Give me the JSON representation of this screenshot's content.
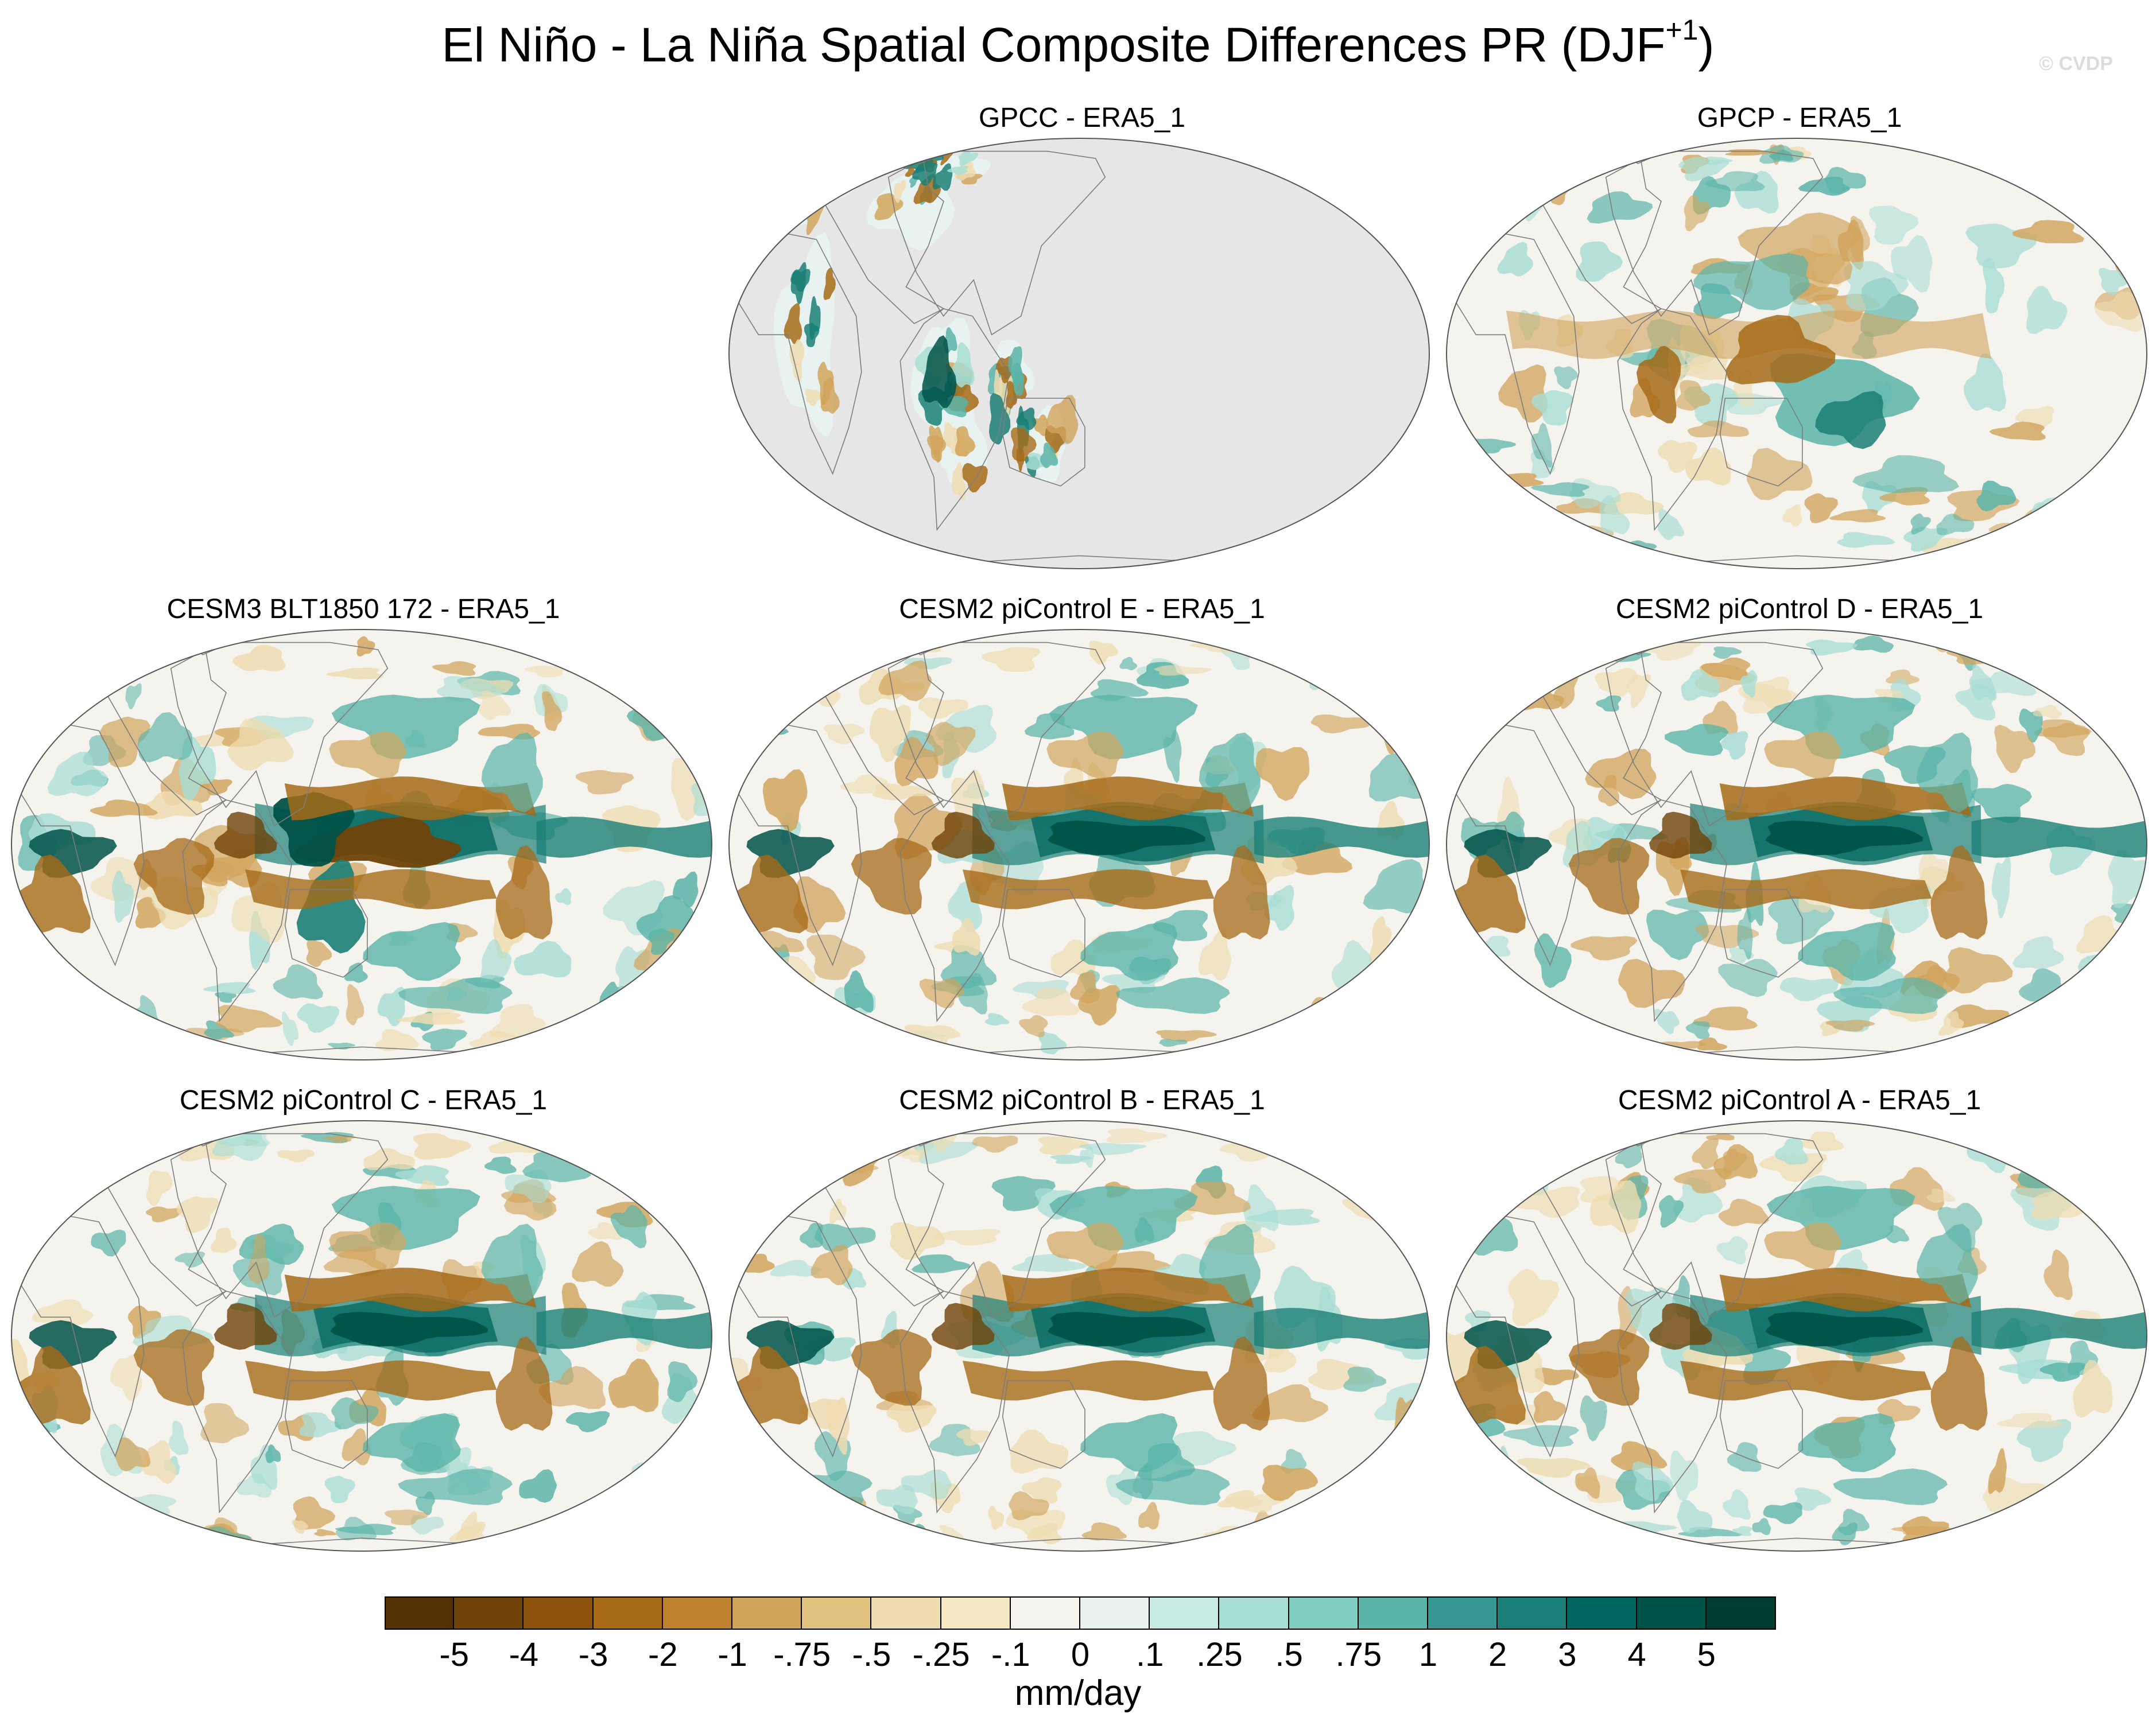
{
  "title": {
    "main": "El Niño - La Niña Spatial Composite Differences PR (DJF",
    "sup": "+1",
    "close": ")"
  },
  "watermark": "© CVDP",
  "panels": [
    {
      "title": "GPCC - ERA5_1",
      "variant": "gpcc"
    },
    {
      "title": "GPCP - ERA5_1",
      "variant": "gpcp"
    },
    {
      "title": "CESM3 BLT1850 172 - ERA5_1",
      "variant": "cesm3"
    },
    {
      "title": "CESM2 piControl E - ERA5_1",
      "variant": "model"
    },
    {
      "title": "CESM2 piControl D - ERA5_1",
      "variant": "model"
    },
    {
      "title": "CESM2 piControl C - ERA5_1",
      "variant": "model"
    },
    {
      "title": "CESM2 piControl B - ERA5_1",
      "variant": "model"
    },
    {
      "title": "CESM2 piControl A - ERA5_1",
      "variant": "model"
    }
  ],
  "colorbar": {
    "labels": [
      "-5",
      "-4",
      "-3",
      "-2",
      "-1",
      "-.75",
      "-.5",
      "-.25",
      "-.1",
      "0",
      ".1",
      ".25",
      ".5",
      ".75",
      "1",
      "2",
      "3",
      "4",
      "5"
    ],
    "colors": [
      "#543005",
      "#6f4208",
      "#8c510a",
      "#a66a18",
      "#bf812d",
      "#d1a45c",
      "#dfc27d",
      "#eedcb0",
      "#f6e8c3",
      "#f5f3ee",
      "#e8f3f1",
      "#c7eae5",
      "#a8ddd4",
      "#80cdc1",
      "#5ab4a8",
      "#35978f",
      "#1a7f76",
      "#01665e",
      "#005248",
      "#003c30"
    ],
    "units": "mm/day"
  },
  "land_mask_color": "#e6e6e6"
}
